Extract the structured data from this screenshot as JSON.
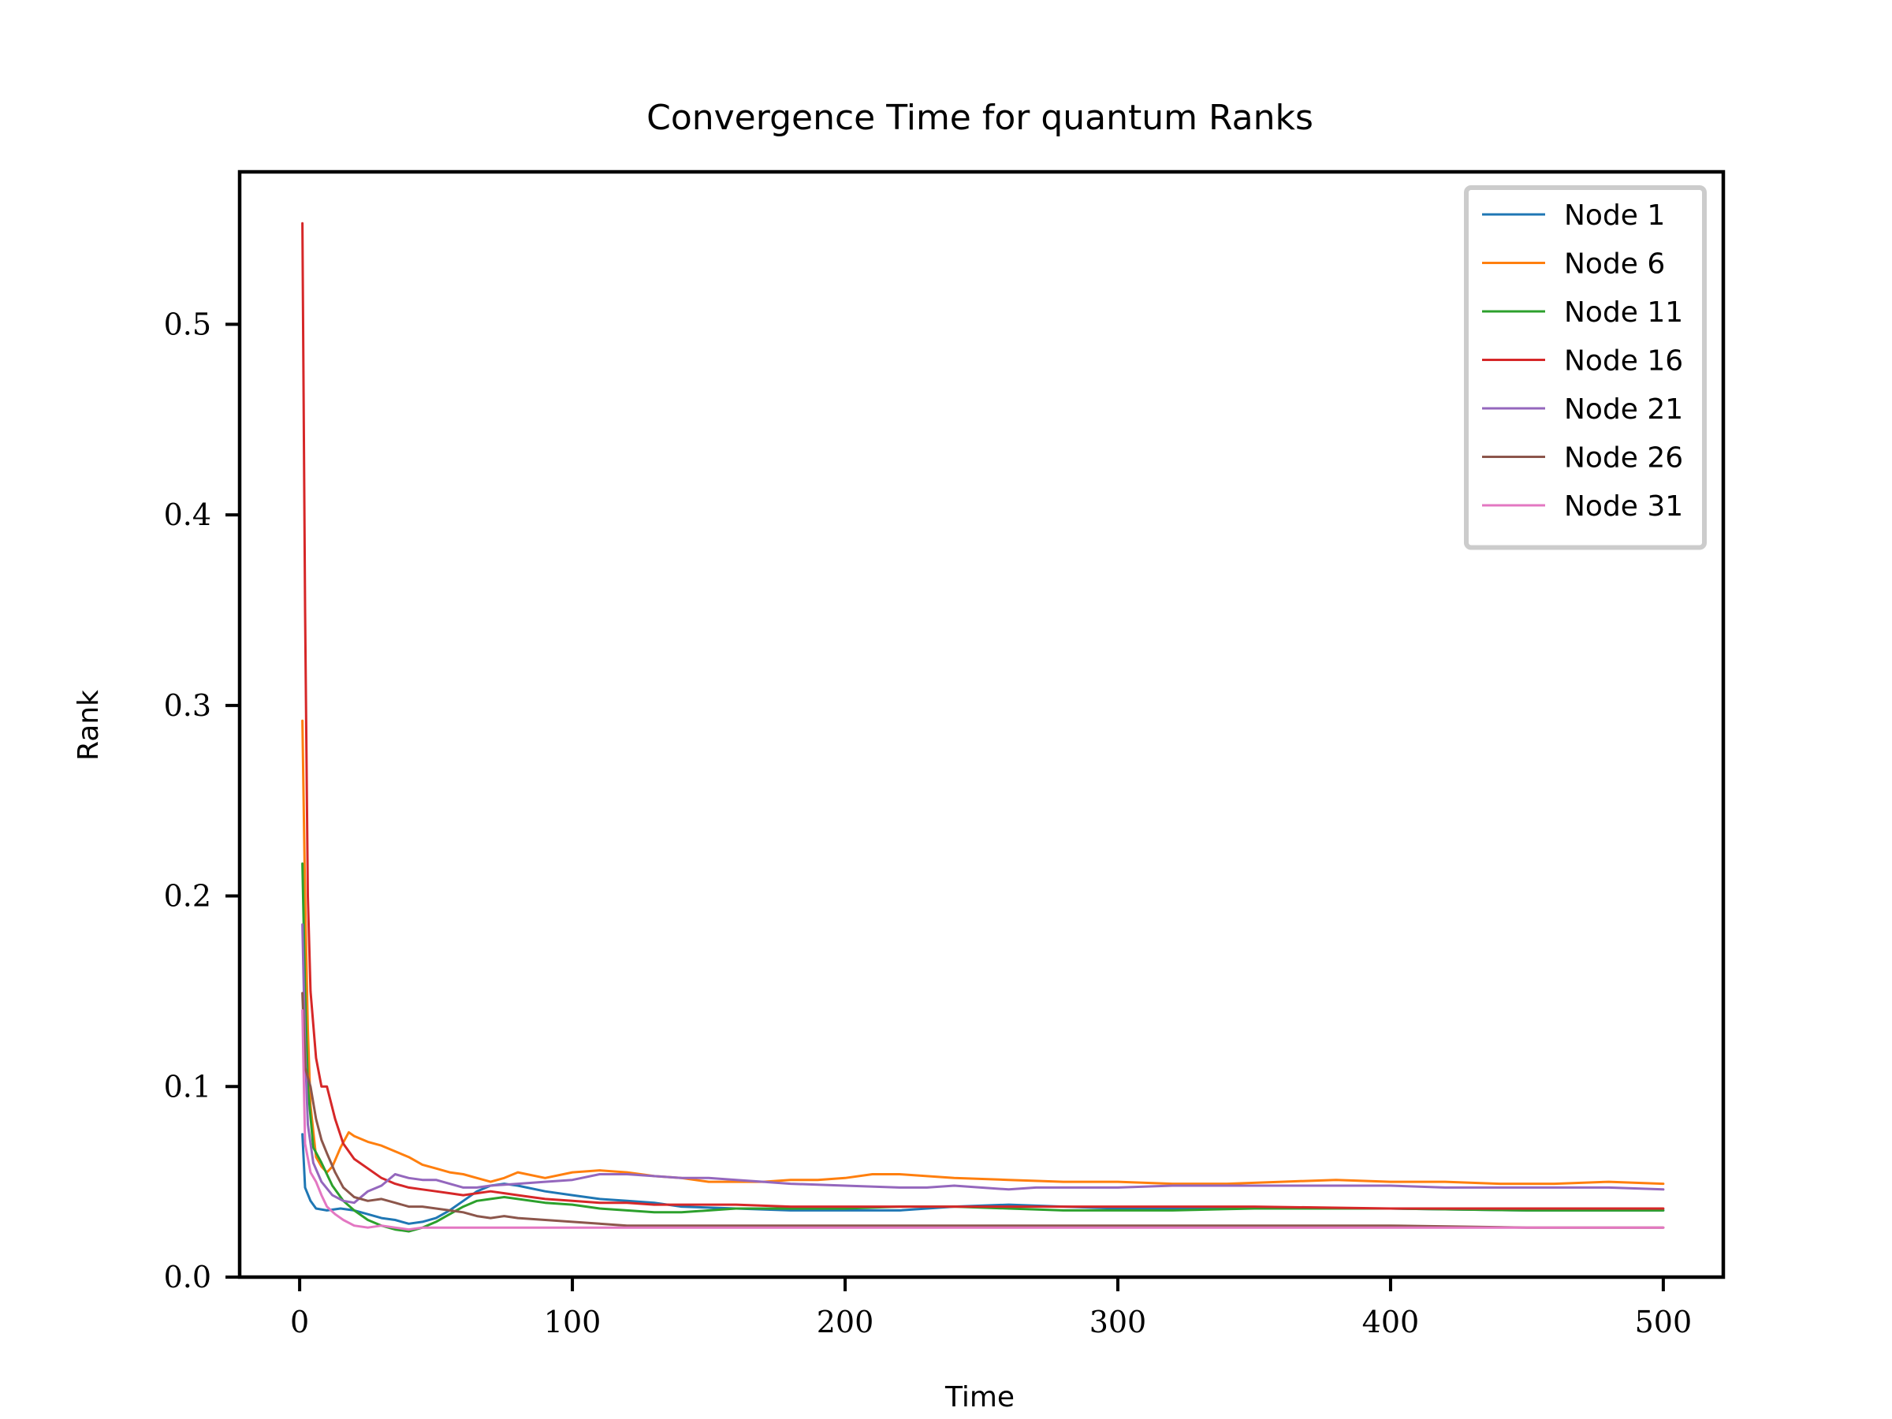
{
  "chart_data": {
    "type": "line",
    "title": "Convergence Time for quantum Ranks",
    "xlabel": "Time",
    "ylabel": "Rank",
    "xlim": [
      -22,
      522
    ],
    "ylim": [
      0.0,
      0.58
    ],
    "xticks": [
      0,
      100,
      200,
      300,
      400,
      500
    ],
    "yticks": [
      0.0,
      0.1,
      0.2,
      0.3,
      0.4,
      0.5
    ],
    "xtick_labels": [
      "0",
      "100",
      "200",
      "300",
      "400",
      "500"
    ],
    "ytick_labels": [
      "0.0",
      "0.1",
      "0.2",
      "0.3",
      "0.4",
      "0.5"
    ],
    "grid": false,
    "legend_position": "top-right",
    "series": [
      {
        "name": "Node 1",
        "color": "#1f77b4",
        "points": [
          [
            1,
            0.075
          ],
          [
            2,
            0.047
          ],
          [
            4,
            0.04
          ],
          [
            6,
            0.036
          ],
          [
            10,
            0.035
          ],
          [
            15,
            0.036
          ],
          [
            20,
            0.035
          ],
          [
            25,
            0.033
          ],
          [
            30,
            0.031
          ],
          [
            35,
            0.03
          ],
          [
            40,
            0.028
          ],
          [
            45,
            0.029
          ],
          [
            50,
            0.031
          ],
          [
            55,
            0.035
          ],
          [
            60,
            0.04
          ],
          [
            65,
            0.045
          ],
          [
            70,
            0.048
          ],
          [
            75,
            0.049
          ],
          [
            80,
            0.048
          ],
          [
            90,
            0.045
          ],
          [
            100,
            0.043
          ],
          [
            110,
            0.041
          ],
          [
            120,
            0.04
          ],
          [
            130,
            0.039
          ],
          [
            140,
            0.037
          ],
          [
            160,
            0.036
          ],
          [
            180,
            0.035
          ],
          [
            200,
            0.035
          ],
          [
            220,
            0.035
          ],
          [
            240,
            0.037
          ],
          [
            260,
            0.038
          ],
          [
            280,
            0.037
          ],
          [
            300,
            0.036
          ],
          [
            320,
            0.036
          ],
          [
            350,
            0.036
          ],
          [
            400,
            0.036
          ],
          [
            450,
            0.035
          ],
          [
            500,
            0.035
          ]
        ]
      },
      {
        "name": "Node 6",
        "color": "#ff7f0e",
        "points": [
          [
            1,
            0.292
          ],
          [
            2,
            0.2
          ],
          [
            3,
            0.13
          ],
          [
            4,
            0.09
          ],
          [
            6,
            0.063
          ],
          [
            8,
            0.058
          ],
          [
            10,
            0.055
          ],
          [
            12,
            0.058
          ],
          [
            15,
            0.068
          ],
          [
            18,
            0.076
          ],
          [
            20,
            0.074
          ],
          [
            25,
            0.071
          ],
          [
            30,
            0.069
          ],
          [
            35,
            0.066
          ],
          [
            40,
            0.063
          ],
          [
            45,
            0.059
          ],
          [
            50,
            0.057
          ],
          [
            55,
            0.055
          ],
          [
            60,
            0.054
          ],
          [
            65,
            0.052
          ],
          [
            70,
            0.05
          ],
          [
            75,
            0.052
          ],
          [
            80,
            0.055
          ],
          [
            90,
            0.052
          ],
          [
            100,
            0.055
          ],
          [
            110,
            0.056
          ],
          [
            120,
            0.055
          ],
          [
            130,
            0.053
          ],
          [
            140,
            0.052
          ],
          [
            150,
            0.05
          ],
          [
            160,
            0.05
          ],
          [
            170,
            0.05
          ],
          [
            180,
            0.051
          ],
          [
            190,
            0.051
          ],
          [
            200,
            0.052
          ],
          [
            210,
            0.054
          ],
          [
            220,
            0.054
          ],
          [
            240,
            0.052
          ],
          [
            260,
            0.051
          ],
          [
            280,
            0.05
          ],
          [
            300,
            0.05
          ],
          [
            320,
            0.049
          ],
          [
            340,
            0.049
          ],
          [
            360,
            0.05
          ],
          [
            380,
            0.051
          ],
          [
            400,
            0.05
          ],
          [
            420,
            0.05
          ],
          [
            440,
            0.049
          ],
          [
            460,
            0.049
          ],
          [
            480,
            0.05
          ],
          [
            500,
            0.049
          ]
        ]
      },
      {
        "name": "Node 11",
        "color": "#2ca02c",
        "points": [
          [
            1,
            0.217
          ],
          [
            2,
            0.15
          ],
          [
            3,
            0.1
          ],
          [
            5,
            0.068
          ],
          [
            8,
            0.06
          ],
          [
            12,
            0.048
          ],
          [
            16,
            0.04
          ],
          [
            20,
            0.035
          ],
          [
            25,
            0.03
          ],
          [
            30,
            0.027
          ],
          [
            35,
            0.025
          ],
          [
            40,
            0.024
          ],
          [
            45,
            0.026
          ],
          [
            50,
            0.029
          ],
          [
            55,
            0.033
          ],
          [
            60,
            0.037
          ],
          [
            65,
            0.04
          ],
          [
            70,
            0.041
          ],
          [
            75,
            0.042
          ],
          [
            80,
            0.041
          ],
          [
            90,
            0.039
          ],
          [
            100,
            0.038
          ],
          [
            110,
            0.036
          ],
          [
            120,
            0.035
          ],
          [
            130,
            0.034
          ],
          [
            140,
            0.034
          ],
          [
            160,
            0.036
          ],
          [
            180,
            0.036
          ],
          [
            200,
            0.036
          ],
          [
            220,
            0.037
          ],
          [
            240,
            0.037
          ],
          [
            260,
            0.036
          ],
          [
            280,
            0.035
          ],
          [
            300,
            0.035
          ],
          [
            320,
            0.035
          ],
          [
            350,
            0.036
          ],
          [
            400,
            0.036
          ],
          [
            450,
            0.035
          ],
          [
            500,
            0.035
          ]
        ]
      },
      {
        "name": "Node 16",
        "color": "#d62728",
        "points": [
          [
            1,
            0.553
          ],
          [
            2,
            0.35
          ],
          [
            3,
            0.2
          ],
          [
            4,
            0.15
          ],
          [
            6,
            0.115
          ],
          [
            8,
            0.1
          ],
          [
            10,
            0.1
          ],
          [
            13,
            0.083
          ],
          [
            16,
            0.07
          ],
          [
            20,
            0.062
          ],
          [
            25,
            0.057
          ],
          [
            30,
            0.052
          ],
          [
            35,
            0.049
          ],
          [
            40,
            0.047
          ],
          [
            45,
            0.046
          ],
          [
            50,
            0.045
          ],
          [
            55,
            0.044
          ],
          [
            60,
            0.043
          ],
          [
            65,
            0.044
          ],
          [
            70,
            0.045
          ],
          [
            75,
            0.044
          ],
          [
            80,
            0.043
          ],
          [
            90,
            0.041
          ],
          [
            100,
            0.04
          ],
          [
            110,
            0.039
          ],
          [
            120,
            0.039
          ],
          [
            130,
            0.038
          ],
          [
            140,
            0.038
          ],
          [
            160,
            0.038
          ],
          [
            180,
            0.037
          ],
          [
            200,
            0.037
          ],
          [
            220,
            0.037
          ],
          [
            240,
            0.037
          ],
          [
            260,
            0.037
          ],
          [
            280,
            0.037
          ],
          [
            300,
            0.037
          ],
          [
            320,
            0.037
          ],
          [
            350,
            0.037
          ],
          [
            400,
            0.036
          ],
          [
            450,
            0.036
          ],
          [
            500,
            0.036
          ]
        ]
      },
      {
        "name": "Node 21",
        "color": "#9467bd",
        "points": [
          [
            1,
            0.185
          ],
          [
            2,
            0.12
          ],
          [
            3,
            0.08
          ],
          [
            5,
            0.06
          ],
          [
            8,
            0.05
          ],
          [
            12,
            0.043
          ],
          [
            16,
            0.04
          ],
          [
            20,
            0.039
          ],
          [
            25,
            0.045
          ],
          [
            30,
            0.048
          ],
          [
            35,
            0.054
          ],
          [
            40,
            0.052
          ],
          [
            45,
            0.051
          ],
          [
            50,
            0.051
          ],
          [
            55,
            0.049
          ],
          [
            60,
            0.047
          ],
          [
            65,
            0.047
          ],
          [
            70,
            0.048
          ],
          [
            80,
            0.049
          ],
          [
            90,
            0.05
          ],
          [
            100,
            0.051
          ],
          [
            110,
            0.054
          ],
          [
            120,
            0.054
          ],
          [
            130,
            0.053
          ],
          [
            140,
            0.052
          ],
          [
            150,
            0.052
          ],
          [
            160,
            0.051
          ],
          [
            170,
            0.05
          ],
          [
            180,
            0.049
          ],
          [
            200,
            0.048
          ],
          [
            220,
            0.047
          ],
          [
            230,
            0.047
          ],
          [
            240,
            0.048
          ],
          [
            260,
            0.046
          ],
          [
            270,
            0.047
          ],
          [
            280,
            0.047
          ],
          [
            300,
            0.047
          ],
          [
            320,
            0.048
          ],
          [
            340,
            0.048
          ],
          [
            360,
            0.048
          ],
          [
            380,
            0.048
          ],
          [
            400,
            0.048
          ],
          [
            420,
            0.047
          ],
          [
            440,
            0.047
          ],
          [
            460,
            0.047
          ],
          [
            480,
            0.047
          ],
          [
            500,
            0.046
          ]
        ]
      },
      {
        "name": "Node 26",
        "color": "#8c564b",
        "points": [
          [
            1,
            0.149
          ],
          [
            2,
            0.11
          ],
          [
            4,
            0.1
          ],
          [
            6,
            0.083
          ],
          [
            8,
            0.072
          ],
          [
            10,
            0.065
          ],
          [
            13,
            0.055
          ],
          [
            16,
            0.047
          ],
          [
            20,
            0.042
          ],
          [
            25,
            0.04
          ],
          [
            30,
            0.041
          ],
          [
            35,
            0.039
          ],
          [
            40,
            0.037
          ],
          [
            45,
            0.037
          ],
          [
            50,
            0.036
          ],
          [
            55,
            0.035
          ],
          [
            60,
            0.034
          ],
          [
            65,
            0.032
          ],
          [
            70,
            0.031
          ],
          [
            75,
            0.032
          ],
          [
            80,
            0.031
          ],
          [
            90,
            0.03
          ],
          [
            100,
            0.029
          ],
          [
            110,
            0.028
          ],
          [
            120,
            0.027
          ],
          [
            130,
            0.027
          ],
          [
            140,
            0.027
          ],
          [
            160,
            0.027
          ],
          [
            180,
            0.027
          ],
          [
            200,
            0.027
          ],
          [
            220,
            0.027
          ],
          [
            240,
            0.027
          ],
          [
            260,
            0.027
          ],
          [
            280,
            0.027
          ],
          [
            300,
            0.027
          ],
          [
            320,
            0.027
          ],
          [
            350,
            0.027
          ],
          [
            400,
            0.027
          ],
          [
            450,
            0.026
          ],
          [
            500,
            0.026
          ]
        ]
      },
      {
        "name": "Node 31",
        "color": "#e377c2",
        "points": [
          [
            1,
            0.14
          ],
          [
            2,
            0.07
          ],
          [
            4,
            0.055
          ],
          [
            6,
            0.05
          ],
          [
            8,
            0.043
          ],
          [
            10,
            0.037
          ],
          [
            13,
            0.033
          ],
          [
            16,
            0.03
          ],
          [
            20,
            0.027
          ],
          [
            25,
            0.026
          ],
          [
            30,
            0.027
          ],
          [
            35,
            0.026
          ],
          [
            40,
            0.025
          ],
          [
            45,
            0.026
          ],
          [
            50,
            0.026
          ],
          [
            55,
            0.026
          ],
          [
            60,
            0.026
          ],
          [
            70,
            0.026
          ],
          [
            80,
            0.026
          ],
          [
            90,
            0.026
          ],
          [
            100,
            0.026
          ],
          [
            120,
            0.026
          ],
          [
            140,
            0.026
          ],
          [
            160,
            0.026
          ],
          [
            180,
            0.026
          ],
          [
            200,
            0.026
          ],
          [
            220,
            0.026
          ],
          [
            240,
            0.026
          ],
          [
            260,
            0.026
          ],
          [
            280,
            0.026
          ],
          [
            300,
            0.026
          ],
          [
            320,
            0.026
          ],
          [
            350,
            0.026
          ],
          [
            400,
            0.026
          ],
          [
            450,
            0.026
          ],
          [
            500,
            0.026
          ]
        ]
      }
    ]
  }
}
